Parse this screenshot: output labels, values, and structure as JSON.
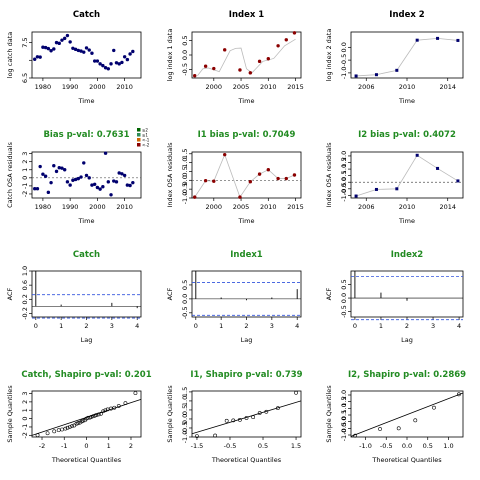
{
  "colors": {
    "navy": "#00006e",
    "darkred": "#8b0000",
    "green": "#228b22",
    "dashed": "#3355dd",
    "gray": "#bbbbbb"
  },
  "chart_data": [
    {
      "type": "scatter",
      "title": "Catch",
      "xlabel": "Time",
      "ylabel": "log catch data",
      "xlim": [
        1976,
        2016
      ],
      "ylim": [
        6.5,
        7.8
      ],
      "xticks": [
        1980,
        1990,
        2000,
        2010
      ],
      "yticks": [
        6.5,
        7.0,
        7.5
      ],
      "yticklabels": [
        "6.5",
        "",
        "7.5"
      ],
      "series": [
        {
          "points_x": [
            1977,
            1978,
            1979,
            1980,
            1981,
            1982,
            1983,
            1984,
            1985,
            1986,
            1987,
            1988,
            1989,
            1990,
            1991,
            1992,
            1993,
            1994,
            1995,
            1996,
            1997,
            1998,
            1999,
            2000,
            2001,
            2002,
            2003,
            2004,
            2005,
            2006,
            2007,
            2008,
            2009,
            2010,
            2011,
            2012,
            2013
          ],
          "points_y": [
            7.03,
            7.1,
            7.09,
            7.37,
            7.36,
            7.33,
            7.27,
            7.32,
            7.5,
            7.48,
            7.57,
            7.62,
            7.7,
            7.52,
            7.34,
            7.31,
            7.28,
            7.26,
            7.23,
            7.35,
            7.29,
            7.2,
            6.98,
            6.98,
            6.9,
            6.85,
            6.79,
            6.76,
            6.9,
            7.28,
            6.93,
            6.9,
            6.94,
            7.1,
            7.02,
            7.18,
            7.25
          ]
        }
      ]
    },
    {
      "type": "line",
      "title": "Index 1",
      "xlabel": "Time",
      "ylabel": "log index 1 data",
      "xlim": [
        1996,
        2016
      ],
      "ylim": [
        -0.8,
        0.8
      ],
      "xticks": [
        2000,
        2005,
        2010,
        2015
      ],
      "yticks": [
        -0.5,
        0.0,
        0.5
      ],
      "series": [
        {
          "x": [
            1997,
            1998,
            1999,
            2001,
            2003,
            2004,
            2005,
            2006,
            2007,
            2009,
            2011,
            2013,
            2015
          ],
          "y": [
            -0.72,
            -0.48,
            -0.45,
            -0.58,
            0.15,
            0.23,
            0.24,
            -0.48,
            -0.62,
            -0.22,
            -0.12,
            0.32,
            0.55
          ],
          "points_x": [
            1996.5,
            1998.5,
            2000,
            2002,
            2004.8,
            2006.7,
            2008.4,
            2010,
            2011.8,
            2013.3,
            2014.8
          ],
          "points_y": [
            -0.72,
            -0.39,
            -0.47,
            0.18,
            -0.52,
            -0.62,
            -0.22,
            -0.13,
            0.32,
            0.53,
            0.77
          ]
        }
      ]
    },
    {
      "type": "line",
      "title": "Index 2",
      "xlabel": "Time",
      "ylabel": "log index 2 data",
      "xlim": [
        2004.5,
        2015.5
      ],
      "ylim": [
        -1.2,
        0.6
      ],
      "xticks": [
        2006,
        2010,
        2014
      ],
      "yticks": [
        -1.0,
        -0.5,
        0.0
      ],
      "series": [
        {
          "x": [
            2005,
            2007,
            2009,
            2011,
            2013,
            2015
          ],
          "y": [
            -1.12,
            -1.07,
            -0.9,
            0.28,
            0.35,
            0.27
          ]
        }
      ]
    },
    {
      "type": "scatter",
      "title": "Bias p-val: 0.7631",
      "xlabel": "Time",
      "ylabel": "Catch OSA residuals",
      "xlim": [
        1976,
        2016
      ],
      "ylim": [
        -2.5,
        3.2
      ],
      "xticks": [
        1980,
        1990,
        2000,
        2010
      ],
      "yticks": [
        -2,
        -1,
        0,
        1,
        2,
        3
      ],
      "legend": [
        "≥2",
        "≥1",
        "<-1",
        "<-2"
      ],
      "series": [
        {
          "points_x": [
            1977,
            1978,
            1979,
            1980,
            1981,
            1982,
            1983,
            1984,
            1985,
            1986,
            1987,
            1988,
            1989,
            1990,
            1991,
            1992,
            1993,
            1994,
            1995,
            1996,
            1997,
            1998,
            1999,
            2000,
            2001,
            2002,
            2003,
            2004,
            2005,
            2006,
            2007,
            2008,
            2009,
            2010,
            2011,
            2012,
            2013
          ],
          "points_y": [
            -1.35,
            -1.35,
            1.4,
            0.45,
            0.2,
            -1.8,
            -0.6,
            1.5,
            0.8,
            1.25,
            1.2,
            1.0,
            -0.5,
            -0.9,
            -0.3,
            -0.2,
            -0.1,
            0.1,
            1.85,
            0.3,
            0.0,
            -0.9,
            -0.8,
            -1.2,
            -1.4,
            -1.1,
            3.05,
            -0.5,
            -2.1,
            -0.4,
            -0.5,
            0.6,
            0.5,
            0.3,
            -0.9,
            -0.95,
            -0.6
          ]
        }
      ]
    },
    {
      "type": "line",
      "title": "I1 bias p-val: 0.7049",
      "xlabel": "Time",
      "ylabel": "Index OSA residuals",
      "xlim": [
        1996,
        2016
      ],
      "ylim": [
        -1.0,
        1.6
      ],
      "xticks": [
        2000,
        2005,
        2010,
        2015
      ],
      "yticks": [
        -1.0,
        -0.5,
        0.0,
        0.5,
        1.0,
        1.5
      ],
      "series": [
        {
          "x": [
            1996.5,
            1998.5,
            2000,
            2002,
            2004.8,
            2006.7,
            2008.4,
            2010,
            2011.8,
            2013.3,
            2014.8
          ],
          "y": [
            -0.95,
            -0.02,
            -0.05,
            1.45,
            -0.95,
            -0.08,
            0.35,
            0.6,
            0.1,
            0.1,
            0.3
          ]
        }
      ]
    },
    {
      "type": "line",
      "title": "I2 bias p-val: 0.4072",
      "xlabel": "Time",
      "ylabel": "Index OSA residuals",
      "xlim": [
        2004.5,
        2015.5
      ],
      "ylim": [
        -1.2,
        2.3
      ],
      "xticks": [
        2006,
        2010,
        2014
      ],
      "yticks": [
        -1.0,
        -0.5,
        0.0,
        0.5,
        1.0,
        1.5,
        2.0
      ],
      "series": [
        {
          "x": [
            2005,
            2007,
            2009,
            2011,
            2013,
            2015
          ],
          "y": [
            -1.05,
            -0.55,
            -0.5,
            2.05,
            1.05,
            0.1
          ]
        }
      ]
    },
    {
      "type": "bar",
      "title": "Catch",
      "xlabel": "Lag",
      "ylabel": "ACF",
      "xlim": [
        -0.15,
        4.15
      ],
      "ylim": [
        -0.3,
        1.0
      ],
      "xticks": [
        0,
        1,
        2,
        3,
        4
      ],
      "yticks": [
        -0.2,
        0.2,
        0.6,
        1.0
      ],
      "ci": [
        0.33,
        -0.33
      ],
      "x": [
        0,
        1,
        2,
        3,
        4
      ],
      "values": [
        1.0,
        0.05,
        0.0,
        0.1,
        -0.05
      ]
    },
    {
      "type": "bar",
      "title": "Index1",
      "xlabel": "Lag",
      "ylabel": "ACF",
      "xlim": [
        -0.15,
        4.15
      ],
      "ylim": [
        -0.65,
        1.0
      ],
      "xticks": [
        0,
        1,
        2,
        3,
        4
      ],
      "yticks": [
        -0.5,
        0.0,
        0.5
      ],
      "ci": [
        0.59,
        -0.59
      ],
      "x": [
        0,
        1,
        2,
        3,
        4
      ],
      "values": [
        1.0,
        0.05,
        -0.05,
        0.05,
        0.35
      ]
    },
    {
      "type": "bar",
      "title": "Index2",
      "xlabel": "Lag",
      "ylabel": "ACF",
      "xlim": [
        -0.15,
        4.15
      ],
      "ylim": [
        -0.7,
        1.0
      ],
      "xticks": [
        0,
        1,
        2,
        3,
        4
      ],
      "yticks": [
        -0.5,
        0.0,
        0.5
      ],
      "ci": [
        0.8,
        -0.8
      ],
      "x": [
        0,
        1,
        2,
        3,
        4
      ],
      "values": [
        1.0,
        0.2,
        -0.1,
        0.0,
        0.0
      ]
    },
    {
      "type": "scatter",
      "title": "Catch, Shapiro p-val: 0.201",
      "xlabel": "Theoretical Quantiles",
      "ylabel": "Sample Quantiles",
      "xlim": [
        -2.45,
        2.45
      ],
      "ylim": [
        -2.2,
        3.3
      ],
      "xticks": [
        -2,
        -1,
        0,
        1,
        2
      ],
      "yticks": [
        -2,
        -1,
        0,
        1,
        2,
        3
      ],
      "line": [
        [
          -2.45,
          -2.0
        ],
        [
          2.45,
          2.3
        ]
      ],
      "series": [
        {
          "points_x": [
            -2.2,
            -1.75,
            -1.45,
            -1.25,
            -1.1,
            -0.95,
            -0.85,
            -0.75,
            -0.65,
            -0.55,
            -0.45,
            -0.38,
            -0.3,
            -0.22,
            -0.15,
            -0.07,
            0.0,
            0.07,
            0.15,
            0.22,
            0.3,
            0.38,
            0.45,
            0.55,
            0.65,
            0.75,
            0.85,
            0.95,
            1.1,
            1.25,
            1.45,
            1.75,
            2.2
          ],
          "points_y": [
            -1.98,
            -1.75,
            -1.52,
            -1.38,
            -1.3,
            -1.2,
            -1.1,
            -1.0,
            -0.9,
            -0.82,
            -0.62,
            -0.55,
            -0.48,
            -0.35,
            -0.25,
            -0.2,
            0.0,
            0.1,
            0.12,
            0.2,
            0.28,
            0.35,
            0.42,
            0.5,
            0.58,
            0.88,
            1.0,
            1.1,
            1.2,
            1.3,
            1.5,
            1.85,
            3.05
          ]
        }
      ]
    },
    {
      "type": "scatter",
      "title": "I1, Shapiro p-val: 0.739",
      "xlabel": "Theoretical Quantiles",
      "ylabel": "Sample Quantiles",
      "xlim": [
        -1.65,
        1.65
      ],
      "ylim": [
        -1.0,
        1.55
      ],
      "xticks": [
        -1.5,
        -0.5,
        0.5,
        1.5
      ],
      "yticks": [
        -1.0,
        -0.5,
        0.0,
        0.5,
        1.0,
        1.5
      ],
      "line": [
        [
          -1.65,
          -0.82
        ],
        [
          1.65,
          1.0
        ]
      ],
      "series": [
        {
          "points_x": [
            -1.5,
            -0.95,
            -0.6,
            -0.4,
            -0.2,
            0.0,
            0.2,
            0.4,
            0.6,
            0.95,
            1.5
          ],
          "points_y": [
            -0.95,
            -0.92,
            -0.1,
            -0.08,
            -0.05,
            0.05,
            0.1,
            0.33,
            0.4,
            0.6,
            1.45
          ]
        }
      ]
    },
    {
      "type": "scatter",
      "title": "I2, Shapiro p-val: 0.2869",
      "xlabel": "Theoretical Quantiles",
      "ylabel": "Sample Quantiles",
      "xlim": [
        -1.35,
        1.35
      ],
      "ylim": [
        -1.15,
        2.3
      ],
      "xticks": [
        -1.0,
        -0.5,
        0.0,
        0.5,
        1.0
      ],
      "yticks": [
        -1.0,
        -0.5,
        0.0,
        0.5,
        1.0,
        1.5,
        2.0
      ],
      "line": [
        [
          -1.35,
          -1.1
        ],
        [
          1.35,
          2.15
        ]
      ],
      "series": [
        {
          "points_x": [
            -1.25,
            -0.65,
            -0.2,
            0.2,
            0.65,
            1.25
          ],
          "points_y": [
            -1.05,
            -0.55,
            -0.5,
            0.1,
            1.05,
            2.05
          ]
        }
      ]
    }
  ]
}
